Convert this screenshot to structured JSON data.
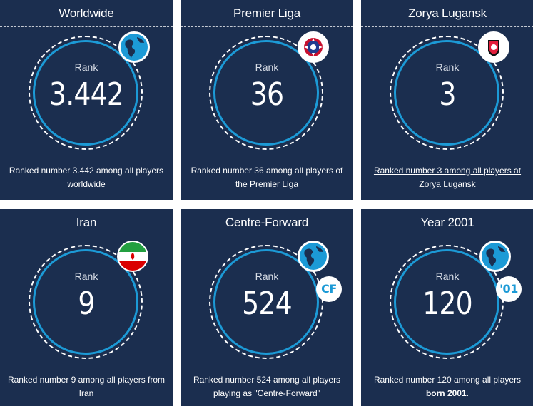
{
  "cards": [
    {
      "title": "Worldwide",
      "rank_label": "Rank",
      "rank": "3.442",
      "badge": "globe-icon",
      "desc": "Ranked number 3.442 among all players worldwide"
    },
    {
      "title": "Premier Liga",
      "rank_label": "Rank",
      "rank": "36",
      "badge": "premier-liga-logo-icon",
      "desc": "Ranked number 36 among all players of the Premier Liga"
    },
    {
      "title": "Zorya Lugansk",
      "rank_label": "Rank",
      "rank": "3",
      "badge": "zorya-lugansk-logo-icon",
      "desc": "Ranked number 3 among all players at Zorya Lugansk"
    },
    {
      "title": "Iran",
      "rank_label": "Rank",
      "rank": "9",
      "badge": "iran-flag-icon",
      "desc": "Ranked number 9 among all players from Iran"
    },
    {
      "title": "Centre-Forward",
      "rank_label": "Rank",
      "rank": "524",
      "badge": "globe-icon",
      "badge2": "CF",
      "desc": "Ranked number 524 among all players playing as \"Centre-Forward\""
    },
    {
      "title": "Year 2001",
      "rank_label": "Rank",
      "rank": "120",
      "badge": "globe-icon",
      "badge2": "'01",
      "desc_prefix": "Ranked number 120 among all players ",
      "desc_bold": "born 2001",
      "desc_suffix": "."
    }
  ],
  "colors": {
    "card_bg": "#1b2e4f",
    "ring": "#1c9ad6",
    "text": "#ffffff"
  }
}
